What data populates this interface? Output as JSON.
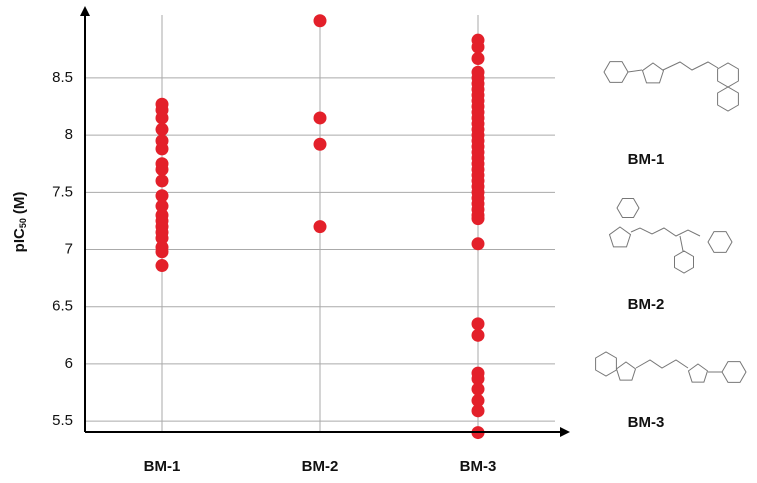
{
  "chart_data": {
    "type": "strip",
    "ylabel": {
      "main": "pIC",
      "sub": "50",
      "unit": "(M)"
    },
    "categories": [
      "BM-1",
      "BM-2",
      "BM-3"
    ],
    "values": [
      [
        8.27,
        8.22,
        8.15,
        8.05,
        7.95,
        7.88,
        7.75,
        7.7,
        7.6,
        7.47,
        7.38,
        7.3,
        7.25,
        7.2,
        7.15,
        7.1,
        7.02,
        6.98,
        6.86
      ],
      [
        9.0,
        8.15,
        7.92,
        7.2
      ],
      [
        8.83,
        8.77,
        8.67,
        8.55,
        8.5,
        8.45,
        8.4,
        8.35,
        8.3,
        8.25,
        8.2,
        8.15,
        8.1,
        8.05,
        8.0,
        7.95,
        7.9,
        7.85,
        7.8,
        7.75,
        7.7,
        7.65,
        7.6,
        7.55,
        7.5,
        7.45,
        7.4,
        7.35,
        7.3,
        7.27,
        7.05,
        6.35,
        6.25,
        5.92,
        5.87,
        5.78,
        5.68,
        5.59,
        5.4
      ]
    ],
    "color": "#e3202a",
    "ylim": [
      5.405,
      9.05
    ],
    "yticks": [
      5.5,
      6,
      6.5,
      7,
      7.5,
      8,
      8.5
    ],
    "grid": true
  },
  "structures": [
    {
      "label": "BM-1"
    },
    {
      "label": "BM-2"
    },
    {
      "label": "BM-3"
    }
  ]
}
